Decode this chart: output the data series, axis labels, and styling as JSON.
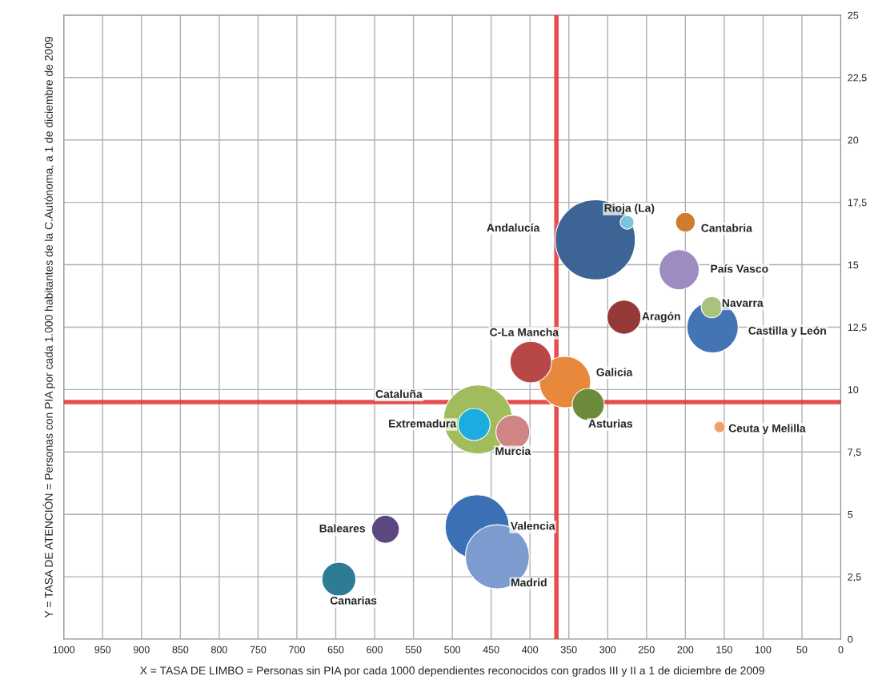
{
  "chart_data": {
    "type": "bubble",
    "xlabel": "X = TASA DE LIMBO = Personas sin PIA por cada 1000 dependientes reconocidos con grados III y II a 1 de diciembre de 2009",
    "ylabel": "Y = TASA DE ATENCIÓN = Personas con PIA por cada 1.000 habitantes de la C.Autónoma, a 1 de diciembre de 2009",
    "xlim": [
      1000,
      0
    ],
    "xticks": [
      1000,
      950,
      900,
      850,
      800,
      750,
      700,
      650,
      600,
      550,
      500,
      450,
      400,
      350,
      300,
      250,
      200,
      150,
      100,
      50,
      0
    ],
    "ylim": [
      0,
      25
    ],
    "yticks": [
      0,
      {
        "value": 2.5,
        "label": "2,5"
      },
      5,
      {
        "value": 7.5,
        "label": "7,5"
      },
      10,
      {
        "value": 12.5,
        "label": "12,5"
      },
      15,
      {
        "value": 17.5,
        "label": "17,5"
      },
      20,
      {
        "value": 22.5,
        "label": "22,5"
      },
      25
    ],
    "grid": true,
    "ref_lines": [
      {
        "axis": "x",
        "value": 366,
        "color": "#e03030"
      },
      {
        "axis": "y",
        "value": 9.5,
        "color": "#e03030"
      }
    ],
    "series": [
      {
        "name": "Andalucía",
        "color": "#3c6494",
        "x": [
          316
        ],
        "values": [
          16.0
        ],
        "sizes": [
          1
        ]
      },
      {
        "name": "Rioja (La)",
        "color": "#7cc4dc",
        "x": [
          275
        ],
        "values": [
          16.7
        ],
        "sizes": [
          0.03
        ]
      },
      {
        "name": "Cantabria",
        "color": "#d07c2c",
        "x": [
          200
        ],
        "values": [
          16.7
        ],
        "sizes": [
          0.06
        ]
      },
      {
        "name": "País Vasco",
        "color": "#9c8cc0",
        "x": [
          208
        ],
        "values": [
          14.8
        ],
        "sizes": [
          0.25
        ]
      },
      {
        "name": "Navarra",
        "color": "#a8c47c",
        "x": [
          166
        ],
        "values": [
          13.3
        ],
        "sizes": [
          0.07
        ]
      },
      {
        "name": "Aragón",
        "color": "#943838",
        "x": [
          279
        ],
        "values": [
          12.9
        ],
        "sizes": [
          0.18
        ]
      },
      {
        "name": "Castilla y León",
        "color": "#4474b4",
        "x": [
          165
        ],
        "values": [
          12.5
        ],
        "sizes": [
          0.41
        ]
      },
      {
        "name": "C-La Mancha",
        "color": "#b84848",
        "x": [
          399
        ],
        "values": [
          11.1
        ],
        "sizes": [
          0.27
        ]
      },
      {
        "name": "Galicia",
        "color": "#e8883c",
        "x": [
          355
        ],
        "values": [
          10.3
        ],
        "sizes": [
          0.41
        ]
      },
      {
        "name": "Cataluña",
        "color": "#a0bc5c",
        "x": [
          467
        ],
        "values": [
          8.8
        ],
        "sizes": [
          0.74
        ]
      },
      {
        "name": "Asturias",
        "color": "#6c8c3c",
        "x": [
          325
        ],
        "values": [
          9.4
        ],
        "sizes": [
          0.16
        ]
      },
      {
        "name": "Extremadura",
        "color": "#1cace0",
        "x": [
          472
        ],
        "values": [
          8.6
        ],
        "sizes": [
          0.16
        ]
      },
      {
        "name": "Murcia",
        "color": "#d08484",
        "x": [
          422
        ],
        "values": [
          8.3
        ],
        "sizes": [
          0.18
        ]
      },
      {
        "name": "Ceuta y Melilla",
        "color": "#f0a06c",
        "x": [
          156
        ],
        "values": [
          8.5
        ],
        "sizes": [
          0.02
        ]
      },
      {
        "name": "Valencia",
        "color": "#3c70b4",
        "x": [
          468
        ],
        "values": [
          4.5
        ],
        "sizes": [
          0.64
        ]
      },
      {
        "name": "Baleares",
        "color": "#5c4880",
        "x": [
          586
        ],
        "values": [
          4.4
        ],
        "sizes": [
          0.12
        ]
      },
      {
        "name": "Madrid",
        "color": "#7c9cd0",
        "x": [
          442
        ],
        "values": [
          3.3
        ],
        "sizes": [
          0.64
        ]
      },
      {
        "name": "Canarias",
        "color": "#2c7c94",
        "x": [
          646
        ],
        "values": [
          2.4
        ],
        "sizes": [
          0.18
        ]
      }
    ]
  }
}
